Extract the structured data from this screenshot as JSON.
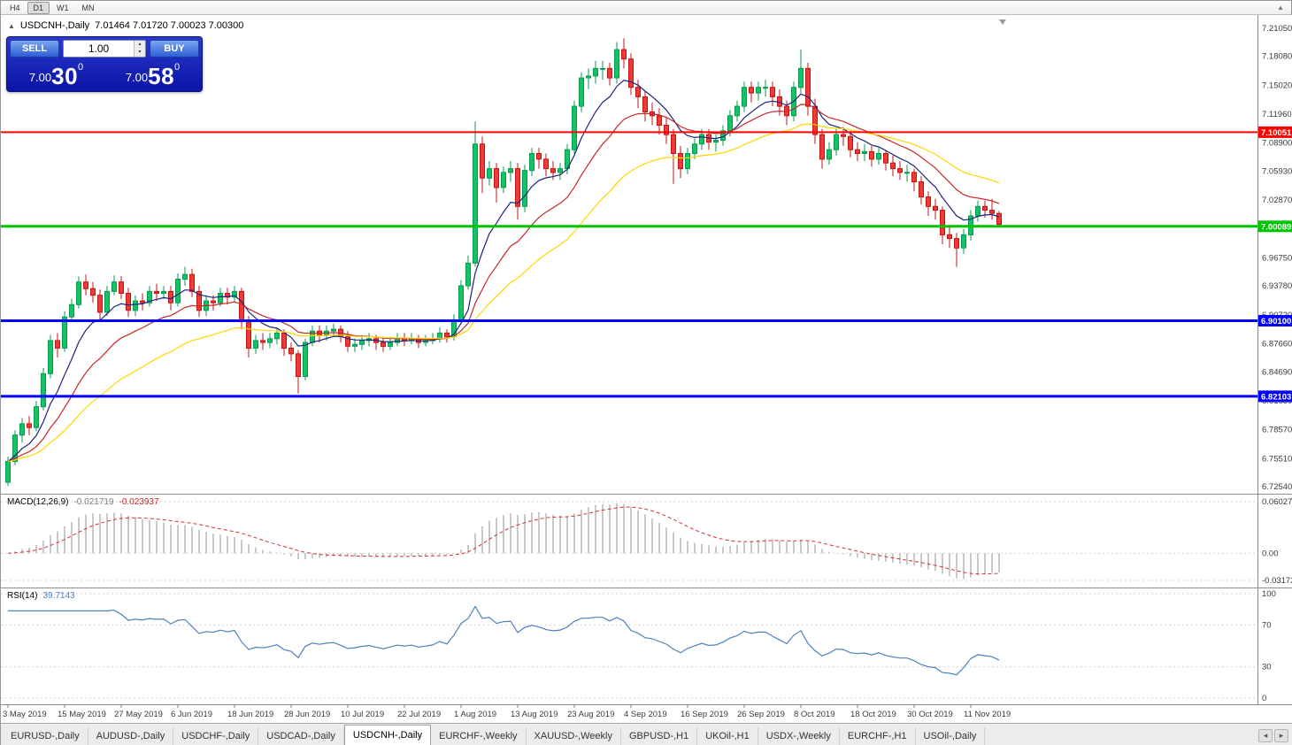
{
  "toolbar": {
    "timeframes": [
      {
        "label": "H4",
        "active": false
      },
      {
        "label": "D1",
        "active": true
      },
      {
        "label": "W1",
        "active": false
      },
      {
        "label": "MN",
        "active": false
      }
    ],
    "window_icon": "▲"
  },
  "chart_header": {
    "collapse_icon": "▲",
    "symbol": "USDCNH-,Daily",
    "ohlc": "7.01464 7.01720 7.00023 7.00300"
  },
  "trade_panel": {
    "sell_label": "SELL",
    "buy_label": "BUY",
    "volume": "1.00",
    "spin_up": "▴",
    "spin_down": "▾",
    "sell_price": {
      "prefix": "7.00",
      "big": "30",
      "sup": "0"
    },
    "buy_price": {
      "prefix": "7.00",
      "big": "58",
      "sup": "0"
    }
  },
  "colors": {
    "bull": "#089950",
    "bull_fill": "#12c464",
    "bear": "#c01414",
    "bear_fill": "#ee3b33",
    "grid": "#d2d2d2",
    "axis_text": "#3a3a3a",
    "axis_line": "#8a8a8a"
  },
  "tabs": {
    "nav_left": "◂",
    "nav_right": "▸",
    "items": [
      {
        "label": "EURUSD-,Daily",
        "active": false
      },
      {
        "label": "AUDUSD-,Daily",
        "active": false
      },
      {
        "label": "USDCHF-,Daily",
        "active": false
      },
      {
        "label": "USDCAD-,Daily",
        "active": false
      },
      {
        "label": "USDCNH-,Daily",
        "active": true
      },
      {
        "label": "EURCHF-,Weekly",
        "active": false
      },
      {
        "label": "XAUUSD-,Weekly",
        "active": false
      },
      {
        "label": "GBPUSD-,H1",
        "active": false
      },
      {
        "label": "UKOil-,H1",
        "active": false
      },
      {
        "label": "USDX-,Weekly",
        "active": false
      },
      {
        "label": "EURCHF-,H1",
        "active": false
      },
      {
        "label": "USOil-,Daily",
        "active": false
      }
    ]
  },
  "chart_data": {
    "type": "candlestick",
    "title": "USDCNH-,Daily",
    "y_range": [
      6.7254,
      7.2105
    ],
    "y_ticks": [
      {
        "text": "7.21050",
        "value": 7.2105
      },
      {
        "text": "7.18080",
        "value": 7.1808
      },
      {
        "text": "7.15020",
        "value": 7.1502
      },
      {
        "text": "7.11960",
        "value": 7.1196
      },
      {
        "text": "7.08900",
        "value": 7.089
      },
      {
        "text": "7.05930",
        "value": 7.0593
      },
      {
        "text": "7.02870",
        "value": 7.0287
      },
      {
        "text": "6.99810",
        "value": 6.9981
      },
      {
        "text": "6.96750",
        "value": 6.9675
      },
      {
        "text": "6.93780",
        "value": 6.9378
      },
      {
        "text": "6.90720",
        "value": 6.9072
      },
      {
        "text": "6.87660",
        "value": 6.8766
      },
      {
        "text": "6.84690",
        "value": 6.8469
      },
      {
        "text": "6.81630",
        "value": 6.8163
      },
      {
        "text": "6.78570",
        "value": 6.7857
      },
      {
        "text": "6.75510",
        "value": 6.7551
      },
      {
        "text": "6.72540",
        "value": 6.7254
      }
    ],
    "x_ticks": [
      {
        "text": "3 May 2019",
        "index": 0
      },
      {
        "text": "15 May 2019",
        "index": 8
      },
      {
        "text": "27 May 2019",
        "index": 16
      },
      {
        "text": "6 Jun 2019",
        "index": 24
      },
      {
        "text": "18 Jun 2019",
        "index": 32
      },
      {
        "text": "28 Jun 2019",
        "index": 40
      },
      {
        "text": "10 Jul 2019",
        "index": 48
      },
      {
        "text": "22 Jul 2019",
        "index": 56
      },
      {
        "text": "1 Aug 2019",
        "index": 64
      },
      {
        "text": "13 Aug 2019",
        "index": 72
      },
      {
        "text": "23 Aug 2019",
        "index": 80
      },
      {
        "text": "4 Sep 2019",
        "index": 88
      },
      {
        "text": "16 Sep 2019",
        "index": 96
      },
      {
        "text": "26 Sep 2019",
        "index": 104
      },
      {
        "text": "8 Oct 2019",
        "index": 112
      },
      {
        "text": "18 Oct 2019",
        "index": 120
      },
      {
        "text": "30 Oct 2019",
        "index": 128
      },
      {
        "text": "11 Nov 2019",
        "index": 136
      }
    ],
    "hlines": [
      {
        "label": "7.10051",
        "value": 7.10051,
        "color": "#ff0000",
        "width": 2
      },
      {
        "label": "7.00089",
        "value": 7.00089,
        "color": "#00c400",
        "width": 3
      },
      {
        "label": "6.90100",
        "value": 6.901,
        "color": "#0000ff",
        "width": 3
      },
      {
        "label": "6.82103",
        "value": 6.82103,
        "color": "#0000ff",
        "width": 3
      }
    ],
    "overlays": [
      {
        "name": "ma-fast-line",
        "period": 8,
        "color": "#1a237e"
      },
      {
        "name": "ma-mid-line",
        "period": 17,
        "color": "#c62828"
      },
      {
        "name": "ma-slow-line",
        "period": 34,
        "color": "#ffd600"
      }
    ],
    "indicators": {
      "macd": {
        "label": "MACD(12,26,9)",
        "main_value": "-0.021719",
        "signal_value": "-0.023937",
        "fast": 12,
        "slow": 26,
        "signal": 9,
        "colors": {
          "hist": "#c9c9c9",
          "signal": "#d03030"
        },
        "y_ticks": [
          {
            "text": "0.06027",
            "value": 0.06027
          },
          {
            "text": "0.00",
            "value": 0
          },
          {
            "text": "-0.03172",
            "value": -0.03172
          }
        ]
      },
      "rsi": {
        "label": "RSI(14)",
        "value": "39.7143",
        "period": 14,
        "color": "#4f81bd",
        "y_ticks": [
          {
            "text": "100",
            "value": 100
          },
          {
            "text": "70",
            "value": 70
          },
          {
            "text": "30",
            "value": 30
          },
          {
            "text": "0",
            "value": 0
          }
        ]
      }
    },
    "candles": [
      [
        6.73,
        6.757,
        6.726,
        6.752
      ],
      [
        6.752,
        6.785,
        6.748,
        6.78
      ],
      [
        6.78,
        6.798,
        6.772,
        6.792
      ],
      [
        6.792,
        6.8,
        6.78,
        6.788
      ],
      [
        6.788,
        6.816,
        6.784,
        6.81
      ],
      [
        6.81,
        6.851,
        6.806,
        6.845
      ],
      [
        6.845,
        6.886,
        6.84,
        6.88
      ],
      [
        6.88,
        6.888,
        6.862,
        6.872
      ],
      [
        6.872,
        6.911,
        6.868,
        6.905
      ],
      [
        6.905,
        6.924,
        6.9,
        6.918
      ],
      [
        6.918,
        6.948,
        6.914,
        6.942
      ],
      [
        6.942,
        6.95,
        6.928,
        6.935
      ],
      [
        6.935,
        6.942,
        6.92,
        6.928
      ],
      [
        6.928,
        6.934,
        6.902,
        6.91
      ],
      [
        6.91,
        6.938,
        6.906,
        6.932
      ],
      [
        6.932,
        6.949,
        6.928,
        6.942
      ],
      [
        6.942,
        6.948,
        6.924,
        6.93
      ],
      [
        6.93,
        6.936,
        6.905,
        6.912
      ],
      [
        6.912,
        6.928,
        6.906,
        6.922
      ],
      [
        6.922,
        6.93,
        6.912,
        6.92
      ],
      [
        6.92,
        6.938,
        6.916,
        6.932
      ],
      [
        6.932,
        6.94,
        6.922,
        6.93
      ],
      [
        6.93,
        6.938,
        6.924,
        6.932
      ],
      [
        6.932,
        6.938,
        6.912,
        6.92
      ],
      [
        6.92,
        6.951,
        6.916,
        6.945
      ],
      [
        6.945,
        6.958,
        6.938,
        6.95
      ],
      [
        6.95,
        6.956,
        6.926,
        6.932
      ],
      [
        6.932,
        6.938,
        6.905,
        6.912
      ],
      [
        6.912,
        6.928,
        6.906,
        6.922
      ],
      [
        6.922,
        6.928,
        6.912,
        6.92
      ],
      [
        6.92,
        6.936,
        6.916,
        6.93
      ],
      [
        6.93,
        6.936,
        6.918,
        6.926
      ],
      [
        6.926,
        6.938,
        6.92,
        6.932
      ],
      [
        6.932,
        6.936,
        6.892,
        6.9
      ],
      [
        6.9,
        6.906,
        6.862,
        6.872
      ],
      [
        6.872,
        6.886,
        6.866,
        6.88
      ],
      [
        6.88,
        6.888,
        6.87,
        6.878
      ],
      [
        6.878,
        6.888,
        6.872,
        6.882
      ],
      [
        6.882,
        6.894,
        6.876,
        6.888
      ],
      [
        6.888,
        6.892,
        6.864,
        6.872
      ],
      [
        6.872,
        6.878,
        6.858,
        6.866
      ],
      [
        6.866,
        6.87,
        6.824,
        6.842
      ],
      [
        6.842,
        6.882,
        6.838,
        6.878
      ],
      [
        6.878,
        6.896,
        6.874,
        6.89
      ],
      [
        6.89,
        6.896,
        6.878,
        6.886
      ],
      [
        6.886,
        6.896,
        6.88,
        6.89
      ],
      [
        6.89,
        6.898,
        6.884,
        6.892
      ],
      [
        6.892,
        6.896,
        6.878,
        6.884
      ],
      [
        6.884,
        6.89,
        6.868,
        6.874
      ],
      [
        6.874,
        6.882,
        6.868,
        6.876
      ],
      [
        6.876,
        6.886,
        6.87,
        6.88
      ],
      [
        6.88,
        6.888,
        6.874,
        6.882
      ],
      [
        6.882,
        6.886,
        6.87,
        6.878
      ],
      [
        6.878,
        6.884,
        6.868,
        6.874
      ],
      [
        6.874,
        6.884,
        6.87,
        6.878
      ],
      [
        6.878,
        6.888,
        6.874,
        6.882
      ],
      [
        6.882,
        6.888,
        6.874,
        6.88
      ],
      [
        6.88,
        6.888,
        6.876,
        6.882
      ],
      [
        6.882,
        6.886,
        6.872,
        6.878
      ],
      [
        6.878,
        6.886,
        6.874,
        6.88
      ],
      [
        6.88,
        6.888,
        6.876,
        6.882
      ],
      [
        6.882,
        6.894,
        6.878,
        6.888
      ],
      [
        6.888,
        6.892,
        6.878,
        6.884
      ],
      [
        6.884,
        6.908,
        6.88,
        6.902
      ],
      [
        6.902,
        6.944,
        6.898,
        6.938
      ],
      [
        6.938,
        6.97,
        6.934,
        6.962
      ],
      [
        6.962,
        7.112,
        6.958,
        7.088
      ],
      [
        7.088,
        7.096,
        7.036,
        7.052
      ],
      [
        7.052,
        7.07,
        7.044,
        7.062
      ],
      [
        7.062,
        7.068,
        7.026,
        7.042
      ],
      [
        7.042,
        7.064,
        7.036,
        7.058
      ],
      [
        7.058,
        7.07,
        7.048,
        7.062
      ],
      [
        7.062,
        7.068,
        7.008,
        7.022
      ],
      [
        7.022,
        7.066,
        7.016,
        7.06
      ],
      [
        7.06,
        7.084,
        7.054,
        7.078
      ],
      [
        7.078,
        7.084,
        7.062,
        7.072
      ],
      [
        7.072,
        7.078,
        7.054,
        7.062
      ],
      [
        7.062,
        7.07,
        7.05,
        7.058
      ],
      [
        7.058,
        7.068,
        7.05,
        7.062
      ],
      [
        7.062,
        7.088,
        7.056,
        7.082
      ],
      [
        7.082,
        7.134,
        7.078,
        7.128
      ],
      [
        7.128,
        7.164,
        7.122,
        7.158
      ],
      [
        7.158,
        7.168,
        7.146,
        7.16
      ],
      [
        7.16,
        7.176,
        7.152,
        7.168
      ],
      [
        7.168,
        7.176,
        7.156,
        7.168
      ],
      [
        7.168,
        7.174,
        7.15,
        7.158
      ],
      [
        7.158,
        7.196,
        7.152,
        7.188
      ],
      [
        7.188,
        7.2,
        7.168,
        7.178
      ],
      [
        7.178,
        7.184,
        7.14,
        7.148
      ],
      [
        7.148,
        7.156,
        7.126,
        7.138
      ],
      [
        7.138,
        7.144,
        7.112,
        7.122
      ],
      [
        7.122,
        7.132,
        7.108,
        7.118
      ],
      [
        7.118,
        7.126,
        7.098,
        7.108
      ],
      [
        7.108,
        7.116,
        7.088,
        7.098
      ],
      [
        7.098,
        7.104,
        7.046,
        7.078
      ],
      [
        7.078,
        7.086,
        7.052,
        7.062
      ],
      [
        7.062,
        7.084,
        7.056,
        7.078
      ],
      [
        7.078,
        7.094,
        7.072,
        7.088
      ],
      [
        7.088,
        7.104,
        7.082,
        7.098
      ],
      [
        7.098,
        7.104,
        7.082,
        7.09
      ],
      [
        7.09,
        7.098,
        7.08,
        7.092
      ],
      [
        7.092,
        7.108,
        7.086,
        7.102
      ],
      [
        7.102,
        7.124,
        7.096,
        7.118
      ],
      [
        7.118,
        7.134,
        7.112,
        7.128
      ],
      [
        7.128,
        7.154,
        7.122,
        7.148
      ],
      [
        7.148,
        7.154,
        7.132,
        7.142
      ],
      [
        7.142,
        7.154,
        7.134,
        7.148
      ],
      [
        7.148,
        7.156,
        7.138,
        7.148
      ],
      [
        7.148,
        7.154,
        7.128,
        7.138
      ],
      [
        7.138,
        7.146,
        7.118,
        7.128
      ],
      [
        7.128,
        7.134,
        7.108,
        7.118
      ],
      [
        7.118,
        7.154,
        7.112,
        7.148
      ],
      [
        7.148,
        7.188,
        7.142,
        7.168
      ],
      [
        7.168,
        7.174,
        7.118,
        7.128
      ],
      [
        7.128,
        7.136,
        7.088,
        7.098
      ],
      [
        7.098,
        7.104,
        7.062,
        7.072
      ],
      [
        7.072,
        7.09,
        7.066,
        7.082
      ],
      [
        7.082,
        7.104,
        7.076,
        7.098
      ],
      [
        7.098,
        7.106,
        7.086,
        7.096
      ],
      [
        7.096,
        7.102,
        7.074,
        7.082
      ],
      [
        7.082,
        7.09,
        7.07,
        7.078
      ],
      [
        7.078,
        7.088,
        7.07,
        7.08
      ],
      [
        7.08,
        7.086,
        7.064,
        7.072
      ],
      [
        7.072,
        7.084,
        7.066,
        7.078
      ],
      [
        7.078,
        7.082,
        7.06,
        7.068
      ],
      [
        7.068,
        7.076,
        7.054,
        7.062
      ],
      [
        7.062,
        7.07,
        7.05,
        7.058
      ],
      [
        7.058,
        7.066,
        7.048,
        7.058
      ],
      [
        7.058,
        7.062,
        7.038,
        7.048
      ],
      [
        7.048,
        7.054,
        7.024,
        7.032
      ],
      [
        7.032,
        7.038,
        7.012,
        7.022
      ],
      [
        7.022,
        7.03,
        7.008,
        7.018
      ],
      [
        7.018,
        7.022,
        6.982,
        6.992
      ],
      [
        6.992,
        7.0,
        6.978,
        6.988
      ],
      [
        6.988,
        6.994,
        6.958,
        6.978
      ],
      [
        6.978,
        6.998,
        6.972,
        6.992
      ],
      [
        6.992,
        7.018,
        6.986,
        7.012
      ],
      [
        7.012,
        7.028,
        7.006,
        7.022
      ],
      [
        7.022,
        7.028,
        7.01,
        7.018
      ],
      [
        7.018,
        7.03,
        7.008,
        7.0146
      ],
      [
        7.0146,
        7.0172,
        7.0002,
        7.003
      ]
    ]
  }
}
